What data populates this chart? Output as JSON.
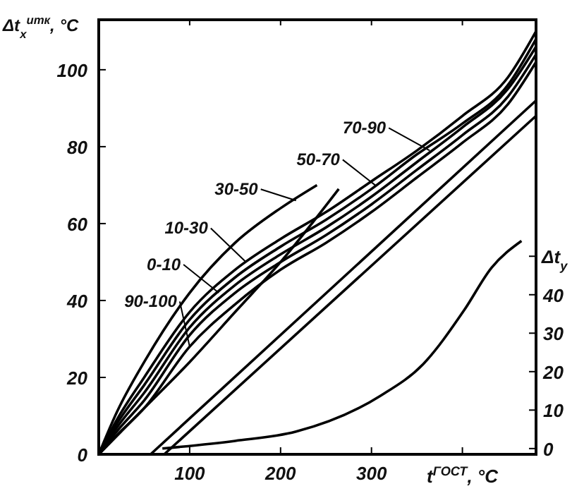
{
  "chart_data": {
    "type": "line",
    "xlabel": "t$^{ГОСТ}$, °C",
    "ylabel": "Δt$_{x}$$^{итк}$, °C",
    "y2label": "Δt$_{у}$",
    "xlim": [
      0,
      481
    ],
    "xticks": [
      100,
      200,
      300,
      {
        "value": 400,
        "label": null
      }
    ],
    "ylim": [
      0,
      113
    ],
    "yticks": [
      0,
      20,
      40,
      60,
      80,
      100
    ],
    "y2lim": [
      -1.5,
      111.5
    ],
    "y2ticks": [
      0,
      10,
      20,
      30,
      40,
      {
        "value": 50,
        "label": null
      }
    ],
    "marker": "none",
    "line_style": "solid",
    "annotations": [
      {
        "text": "30-50",
        "x": 217,
        "y": 66
      },
      {
        "text": "10-30",
        "x": 162,
        "y": 50
      },
      {
        "text": "0-10",
        "x": 132,
        "y": 42
      },
      {
        "text": "90-100",
        "x": 100,
        "y": 28
      },
      {
        "text": "50-70",
        "x": 304,
        "y": 70
      },
      {
        "text": "70-90",
        "x": 364,
        "y": 79
      }
    ],
    "series": [
      {
        "color": "#000000",
        "x": [
          0,
          20,
          50,
          100,
          150,
          200,
          240
        ],
        "values": [
          0,
          11,
          24,
          42,
          55,
          64,
          70
        ]
      },
      {
        "color": "#000000",
        "x": [
          0,
          50,
          100,
          150,
          200,
          264
        ],
        "values": [
          0,
          12,
          24,
          37,
          50,
          69
        ]
      },
      {
        "color": "#000000",
        "x": [
          0,
          20,
          50,
          100,
          150,
          200,
          250,
          300,
          350,
          400,
          450,
          481
        ],
        "values": [
          0,
          9,
          20,
          37,
          48,
          56,
          63,
          71,
          79,
          88,
          98,
          110
        ]
      },
      {
        "color": "#000000",
        "x": [
          0,
          20,
          50,
          100,
          150,
          200,
          250,
          300,
          350,
          400,
          450,
          481
        ],
        "values": [
          0,
          8,
          18,
          35,
          46,
          54,
          61,
          69,
          78,
          86,
          96,
          108
        ]
      },
      {
        "color": "#000000",
        "x": [
          0,
          20,
          50,
          100,
          150,
          200,
          250,
          300,
          350,
          400,
          450,
          481
        ],
        "values": [
          0,
          7,
          16,
          33,
          44,
          52,
          59,
          67,
          76,
          85,
          95,
          106
        ]
      },
      {
        "color": "#000000",
        "x": [
          0,
          20,
          50,
          100,
          150,
          200,
          250,
          300,
          350,
          400,
          450,
          481
        ],
        "values": [
          0,
          6,
          14,
          31,
          42,
          50,
          57,
          65,
          74,
          83,
          93,
          104
        ]
      },
      {
        "color": "#000000",
        "x": [
          0,
          20,
          50,
          100,
          150,
          200,
          250,
          300,
          350,
          400,
          450,
          481
        ],
        "values": [
          0,
          5,
          12,
          28,
          39,
          48,
          55,
          63,
          72,
          81,
          91,
          102
        ]
      },
      {
        "color": "#000000",
        "x": [
          57,
          481
        ],
        "values": [
          0,
          92
        ]
      },
      {
        "color": "#000000",
        "x": [
          72,
          481
        ],
        "values": [
          0,
          88
        ]
      },
      {
        "color": "#000000",
        "axis": "y2",
        "x": [
          70,
          150,
          217,
          309,
          357,
          402,
          432,
          465
        ],
        "values": [
          0,
          2,
          4.4,
          13.6,
          22,
          36,
          47,
          54
        ]
      }
    ]
  }
}
